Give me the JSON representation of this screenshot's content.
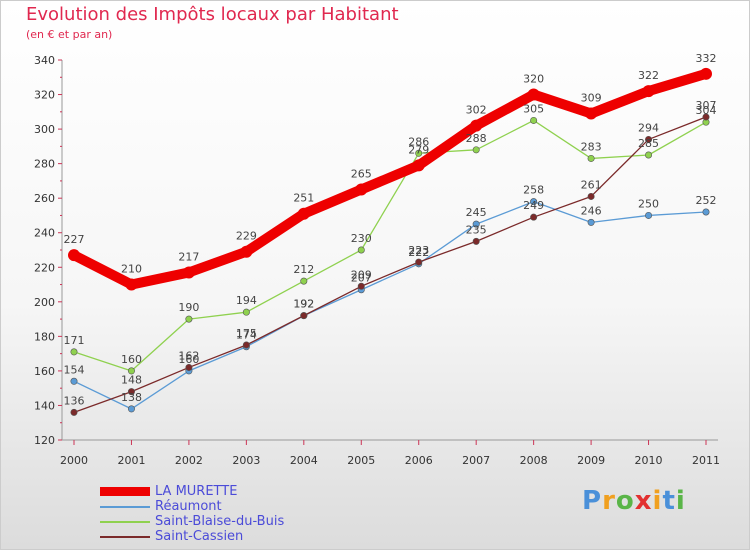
{
  "title": "Evolution des Impôts locaux par Habitant",
  "subtitle": "(en € et par an)",
  "logo": {
    "letters": [
      "P",
      "r",
      "o",
      "x",
      "i",
      "t",
      "i"
    ],
    "colors": [
      "#4a90d9",
      "#f0a020",
      "#5ab548",
      "#e23030",
      "#f0a020",
      "#4a90d9",
      "#5ab548"
    ]
  },
  "chart_data": {
    "type": "line",
    "title": "Evolution des Impôts locaux par Habitant",
    "subtitle": "(en € et par an)",
    "x": [
      "2000",
      "2001",
      "2002",
      "2003",
      "2004",
      "2005",
      "2006",
      "2007",
      "2008",
      "2009",
      "2010",
      "2011"
    ],
    "ylim": [
      120,
      340
    ],
    "yticks": [
      120,
      140,
      160,
      180,
      200,
      220,
      240,
      260,
      280,
      300,
      320,
      340
    ],
    "grid": false,
    "legend": "bottom-left",
    "series": [
      {
        "name": "LA MURETTE",
        "color": "#ee0000",
        "values": [
          227,
          210,
          217,
          229,
          251,
          265,
          279,
          302,
          320,
          309,
          322,
          332
        ]
      },
      {
        "name": "Réaumont",
        "color": "#5b9bd5",
        "values": [
          154,
          138,
          160,
          174,
          192,
          207,
          222,
          245,
          258,
          246,
          250,
          252
        ]
      },
      {
        "name": "Saint-Blaise-du-Buis",
        "color": "#8fd14f",
        "values": [
          171,
          160,
          190,
          194,
          212,
          230,
          286,
          288,
          305,
          283,
          285,
          304
        ]
      },
      {
        "name": "Saint-Cassien",
        "color": "#7b2a2a",
        "values": [
          136,
          148,
          162,
          175,
          192,
          209,
          223,
          235,
          249,
          261,
          294,
          307
        ]
      }
    ]
  }
}
